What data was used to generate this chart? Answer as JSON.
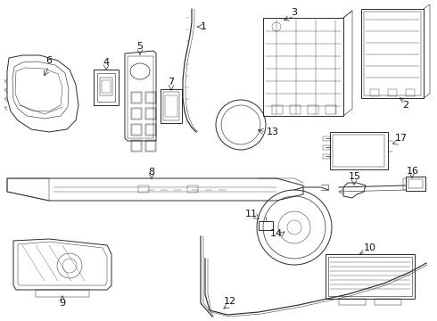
{
  "bg_color": "#ffffff",
  "lc": "#2a2a2a",
  "lw": 0.7
}
